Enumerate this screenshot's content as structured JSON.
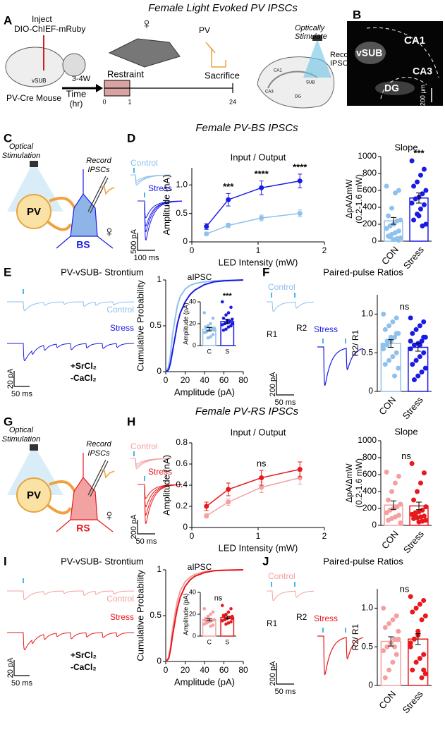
{
  "title": "Female Light Evoked PV IPSCs",
  "panel_a": {
    "letter": "A",
    "inject": "Inject",
    "virus": "DIO-ChIEF-mRuby",
    "region": "vSUB",
    "mouse": "PV-Cre Mouse",
    "interval": "3-4W",
    "time": "Time",
    "time_unit": "(hr)",
    "restraint": "Restraint",
    "time_points": [
      0,
      1,
      24
    ],
    "sex": "♀",
    "cell": "PV",
    "sacrifice": "Sacrifice",
    "stimulate": [
      "Optically",
      "Stimulate"
    ],
    "record": [
      "Record",
      "IPSCs"
    ],
    "regions": [
      "CA1",
      "CA3",
      "DG",
      "SUB"
    ]
  },
  "panel_b": {
    "letter": "B",
    "regions": [
      "CA1",
      "vSUB",
      "CA3",
      "DG"
    ],
    "scale": "200 μm"
  },
  "sections": [
    {
      "title": "Female PV-BS IPSCs",
      "schematic": {
        "letter": "C",
        "stimulation": [
          "Optical",
          "Stimulation"
        ],
        "record": [
          "Record",
          "IPSCs"
        ],
        "cell": "PV",
        "target": "BS",
        "sex": "♀"
      },
      "io_traces": {
        "letter": "D",
        "control": "Control",
        "stress": "Stress",
        "scale_y": "500 pA",
        "scale_x": "100 ms"
      },
      "strontium": {
        "letter": "E",
        "title": "PV-vSUB- Strontium",
        "control": "Control",
        "stress": "Stress",
        "drugs": [
          "+SrCl₂",
          "-CaCl₂"
        ],
        "scale_y": "20 pA",
        "scale_x": "50 ms"
      },
      "ppr": {
        "letter": "F",
        "title": "Paired-pulse Ratios",
        "control": "Control",
        "stress": "Stress",
        "pulses": [
          "R1",
          "R2"
        ],
        "scale_y": "200 pA",
        "scale_x": "50 ms"
      }
    },
    {
      "title": "Female PV-RS IPSCs",
      "schematic": {
        "letter": "G",
        "stimulation": [
          "Optical",
          "Stimulation"
        ],
        "record": [
          "Record",
          "IPSCs"
        ],
        "cell": "PV",
        "target": "RS",
        "sex": "♀"
      },
      "io_traces": {
        "letter": "H",
        "control": "Control",
        "stress": "Stress",
        "scale_y": "200 pA",
        "scale_x": "50 ms"
      },
      "strontium": {
        "letter": "I",
        "title": "PV-vSUB- Strontium",
        "control": "Control",
        "stress": "Stress",
        "drugs": [
          "+SrCl₂",
          "-CaCl₂"
        ],
        "scale_y": "20 pA",
        "scale_x": "50 ms"
      },
      "ppr": {
        "letter": "J",
        "title": "Paired-pulse Ratios",
        "control": "Control",
        "stress": "Stress",
        "pulses": [
          "R1",
          "R2"
        ],
        "scale_y": "200 pA",
        "scale_x": "50 ms"
      }
    }
  ],
  "chart_data": [
    {
      "type": "line",
      "title": "Input / Output",
      "xlabel": "LED Intensity (mW)",
      "ylabel": "Amplitude (nA)",
      "markers": true,
      "x": [
        0.22,
        0.55,
        1.05,
        1.63
      ],
      "xlim": [
        0,
        2
      ],
      "xticks": [
        0,
        1,
        2
      ],
      "ylim": [
        0,
        1.3
      ],
      "yticks": [
        0,
        0.5,
        {
          "value": 1,
          "label": "1.0"
        }
      ],
      "series": [
        {
          "color": "#8fc1ec",
          "values": [
            0.14,
            0.29,
            0.42,
            0.5
          ],
          "errors": [
            0.03,
            0.04,
            0.05,
            0.06
          ]
        },
        {
          "color": "#1a1ae6",
          "values": [
            0.27,
            0.74,
            0.95,
            1.07
          ],
          "errors": [
            0.05,
            0.11,
            0.12,
            0.12
          ]
        }
      ],
      "significance": [
        null,
        "***",
        "****",
        "****"
      ]
    },
    {
      "type": "bar",
      "title": "Slope",
      "ylabel": [
        "ΔpA/ΔmW",
        "(0.2-1.6 mW)"
      ],
      "categories": [
        "CON",
        "Stress"
      ],
      "colors": [
        "#8fc1ec",
        "#1a1ae6"
      ],
      "values": [
        240,
        510
      ],
      "errors": [
        40,
        60
      ],
      "ylim": [
        0,
        1000
      ],
      "yticks": [
        0,
        200,
        400,
        600,
        800,
        1000
      ],
      "significance": "***",
      "points": [
        [
          650,
          600,
          570,
          390,
          300,
          250,
          240,
          200,
          180,
          150,
          120,
          100,
          80,
          60,
          40,
          30,
          20,
          50,
          150,
          10
        ],
        [
          950,
          850,
          780,
          700,
          650,
          600,
          560,
          520,
          500,
          450,
          430,
          380,
          320,
          250,
          200,
          180,
          300
        ]
      ]
    },
    {
      "type": "line",
      "annotation": "aIPSC",
      "xlabel": "Amplitude (pA)",
      "ylabel": "Cumulative Probability",
      "xlim": [
        0,
        80
      ],
      "xticks": [
        0,
        20,
        40,
        60,
        80
      ],
      "ylim": [
        0,
        1
      ],
      "yticks": [
        0,
        0.5,
        1
      ],
      "series": [
        {
          "color": "#8fc1ec",
          "x": [
            0,
            3,
            5,
            7,
            10,
            12,
            15,
            20,
            25,
            30,
            40,
            50,
            60,
            80
          ],
          "values": [
            0,
            0.05,
            0.2,
            0.4,
            0.6,
            0.72,
            0.82,
            0.9,
            0.94,
            0.96,
            0.98,
            0.99,
            0.995,
            1
          ]
        },
        {
          "color": "#1a1ae6",
          "x": [
            0,
            3,
            5,
            7,
            10,
            12,
            15,
            20,
            25,
            30,
            40,
            50,
            60,
            80
          ],
          "values": [
            0,
            0.02,
            0.1,
            0.22,
            0.4,
            0.52,
            0.64,
            0.76,
            0.84,
            0.89,
            0.95,
            0.98,
            0.99,
            1
          ]
        }
      ],
      "inset": {
        "type": "bar",
        "ylabel": [
          "Amplitude (pA)"
        ],
        "categories": [
          "C",
          "S"
        ],
        "colors": [
          "#8fc1ec",
          "#1a1ae6"
        ],
        "values": [
          15,
          22
        ],
        "errors": [
          1.5,
          2
        ],
        "ylim": [
          0,
          40
        ],
        "yticks": [
          0,
          20,
          40
        ],
        "significance": "***",
        "points": [
          [
            30,
            25,
            20,
            18,
            17,
            16,
            15,
            14,
            13,
            12,
            10,
            8,
            7,
            12,
            14,
            16
          ],
          [
            40,
            35,
            30,
            28,
            25,
            24,
            22,
            21,
            20,
            19,
            18,
            17,
            15,
            14,
            20,
            22,
            23
          ]
        ]
      }
    },
    {
      "type": "bar",
      "ylabel": [
        "R2/ R1"
      ],
      "categories": [
        "CON",
        "Stress"
      ],
      "colors": [
        "#8fc1ec",
        "#1a1ae6"
      ],
      "values": [
        0.62,
        0.57
      ],
      "errors": [
        0.05,
        0.05
      ],
      "ylim": [
        0,
        1.25
      ],
      "yticks": [
        0,
        0.5,
        {
          "value": 1,
          "label": "1.0"
        }
      ],
      "significance": "ns",
      "points": [
        [
          1.0,
          0.95,
          0.9,
          0.85,
          0.8,
          0.75,
          0.7,
          0.65,
          0.6,
          0.55,
          0.5,
          0.45,
          0.4,
          0.35,
          0.3,
          0.2,
          0.7,
          0.65,
          0.6,
          0.75
        ],
        [
          0.95,
          0.9,
          0.85,
          0.8,
          0.75,
          0.7,
          0.65,
          0.62,
          0.6,
          0.55,
          0.5,
          0.45,
          0.4,
          0.35,
          0.3,
          0.25,
          0.2,
          0.15,
          0.65,
          0.7,
          0.6
        ]
      ]
    },
    {
      "type": "line",
      "title": "Input / Output",
      "xlabel": "LED Intensity (mW)",
      "ylabel": "Amplitude (nA)",
      "markers": true,
      "x": [
        0.22,
        0.55,
        1.05,
        1.63
      ],
      "xlim": [
        0,
        2
      ],
      "xticks": [
        0,
        1,
        2
      ],
      "ylim": [
        0,
        0.8
      ],
      "yticks": [
        0,
        0.2,
        0.4,
        0.6,
        0.8
      ],
      "series": [
        {
          "color": "#f4a0a0",
          "values": [
            0.11,
            0.24,
            0.38,
            0.47
          ],
          "errors": [
            0.02,
            0.03,
            0.05,
            0.06
          ]
        },
        {
          "color": "#e8181c",
          "values": [
            0.2,
            0.36,
            0.47,
            0.55
          ],
          "errors": [
            0.04,
            0.06,
            0.07,
            0.07
          ]
        }
      ],
      "significance": [
        null,
        null,
        "ns",
        null
      ]
    },
    {
      "type": "bar",
      "title": "Slope",
      "ylabel": [
        "ΔpA/ΔmW",
        "(0.2-1.6 mW)"
      ],
      "categories": [
        "CON",
        "Stress"
      ],
      "colors": [
        "#f4a0a0",
        "#e8181c"
      ],
      "values": [
        240,
        230
      ],
      "errors": [
        50,
        45
      ],
      "ylim": [
        0,
        1000
      ],
      "yticks": [
        0,
        200,
        400,
        600,
        800,
        1000
      ],
      "significance": "ns",
      "points": [
        [
          630,
          580,
          500,
          400,
          300,
          250,
          220,
          200,
          180,
          150,
          120,
          100,
          80,
          60,
          30
        ],
        [
          730,
          620,
          500,
          400,
          300,
          220,
          180,
          160,
          150,
          130,
          110,
          100,
          90,
          80,
          60,
          50,
          40,
          120
        ]
      ]
    },
    {
      "type": "line",
      "annotation": "aIPSC",
      "xlabel": "Amplitude (pA)",
      "ylabel": "Cumulative Probability",
      "xlim": [
        0,
        80
      ],
      "xticks": [
        0,
        20,
        40,
        60,
        80
      ],
      "ylim": [
        0,
        1
      ],
      "yticks": [
        0,
        0.5,
        1
      ],
      "series": [
        {
          "color": "#f4a0a0",
          "x": [
            0,
            3,
            5,
            7,
            10,
            12,
            15,
            20,
            25,
            30,
            40,
            50,
            60,
            80
          ],
          "values": [
            0,
            0.04,
            0.17,
            0.35,
            0.55,
            0.66,
            0.77,
            0.87,
            0.92,
            0.95,
            0.98,
            0.99,
            0.995,
            1
          ]
        },
        {
          "color": "#e8181c",
          "x": [
            0,
            3,
            5,
            7,
            10,
            12,
            15,
            20,
            25,
            30,
            40,
            50,
            60,
            80
          ],
          "values": [
            0,
            0.03,
            0.13,
            0.28,
            0.47,
            0.58,
            0.7,
            0.82,
            0.89,
            0.93,
            0.97,
            0.99,
            0.995,
            1
          ]
        }
      ],
      "inset": {
        "type": "bar",
        "ylabel": [
          "Amplitude (pA)"
        ],
        "categories": [
          "C",
          "S"
        ],
        "colors": [
          "#f4a0a0",
          "#e8181c"
        ],
        "values": [
          15,
          17
        ],
        "errors": [
          1,
          1.2
        ],
        "ylim": [
          0,
          40
        ],
        "yticks": [
          0,
          20,
          40
        ],
        "significance": "ns",
        "points": [
          [
            25,
            22,
            20,
            18,
            16,
            15,
            14,
            13,
            12,
            11,
            10,
            9,
            15,
            14
          ],
          [
            28,
            25,
            22,
            20,
            19,
            18,
            17,
            16,
            15,
            14,
            13,
            12,
            11,
            18,
            16
          ]
        ]
      }
    },
    {
      "type": "bar",
      "ylabel": [
        "R2/ R1"
      ],
      "categories": [
        "CON",
        "Stress"
      ],
      "colors": [
        "#f4a0a0",
        "#e8181c"
      ],
      "values": [
        0.57,
        0.6
      ],
      "errors": [
        0.06,
        0.07
      ],
      "ylim": [
        0,
        1.25
      ],
      "yticks": [
        0,
        0.5,
        {
          "value": 1,
          "label": "1.0"
        }
      ],
      "significance": "ns",
      "points": [
        [
          1.0,
          0.9,
          0.85,
          0.8,
          0.75,
          0.7,
          0.6,
          0.55,
          0.5,
          0.45,
          0.4,
          0.3,
          0.2,
          0.1,
          0.6,
          0.5,
          0.55
        ],
        [
          1.15,
          1.1,
          1.05,
          1.0,
          0.95,
          0.9,
          0.85,
          0.7,
          0.6,
          0.5,
          0.4,
          0.35,
          0.3,
          0.2,
          0.15,
          0.1,
          0.65,
          0.6,
          0.55,
          0.2
        ]
      ]
    }
  ]
}
